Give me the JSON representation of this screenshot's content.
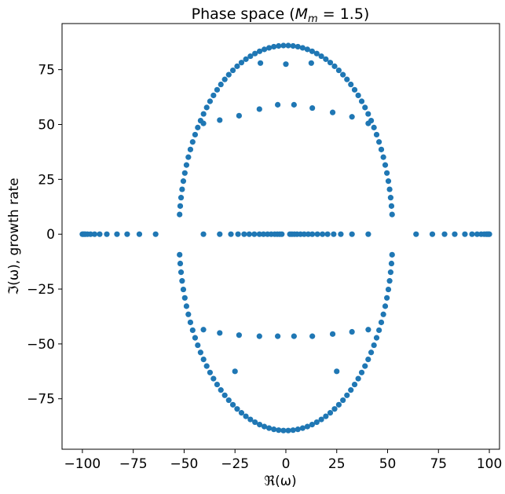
{
  "chart_data": {
    "type": "scatter",
    "title_prefix": "Phase space (",
    "title_math": "M",
    "title_math_sub": "m",
    "title_suffix": " = 1.5)",
    "xlabel": "ℜ(ω)",
    "ylabel": "ℑ(ω), growth rate",
    "xlim": [
      -110,
      105
    ],
    "ylim": [
      -98,
      96
    ],
    "xticks": [
      -100,
      -75,
      -50,
      -25,
      0,
      25,
      50,
      75,
      100
    ],
    "xtick_labels": [
      "−100",
      "−75",
      "−50",
      "−25",
      "0",
      "25",
      "50",
      "75",
      "100"
    ],
    "yticks": [
      -75,
      -50,
      -25,
      0,
      25,
      50,
      75
    ],
    "ytick_labels": [
      "−75",
      "−50",
      "−25",
      "0",
      "25",
      "50",
      "75"
    ],
    "grid": false,
    "marker_color": "#1f77b4",
    "real_axis_points": [
      -100,
      -99.6,
      -99,
      -98.5,
      -97.5,
      -96,
      -94,
      -91.5,
      -88,
      -83,
      -78,
      -72,
      -64,
      -40.5,
      -32.5,
      -27,
      -23.5,
      -20.5,
      -18,
      -15.5,
      -13,
      -11,
      -9,
      -7.2,
      -5.5,
      -4.2,
      -3,
      -2,
      2,
      3,
      4.2,
      5.5,
      7.2,
      9,
      11,
      13,
      15.5,
      18,
      20.5,
      23.5,
      27,
      32.5,
      40.5,
      64,
      72,
      78,
      83,
      88,
      91.5,
      94,
      96,
      97.5,
      98.5,
      99,
      99.6,
      100
    ],
    "upper_arc": {
      "center_x": 0,
      "center_y": 0,
      "radius_x": 52.5,
      "peak_y": 86,
      "count": 66,
      "theta_start_deg": 6,
      "theta_end_deg": 174
    },
    "lower_arc": {
      "center_x": 0,
      "center_y": 0,
      "radius_x": 52.5,
      "peak_y": -89.5,
      "count": 66,
      "theta_start_deg": 6,
      "theta_end_deg": 174
    },
    "inner_points": [
      {
        "x": -12.5,
        "y": 78
      },
      {
        "x": 0,
        "y": 77.5
      },
      {
        "x": 12.5,
        "y": 78
      },
      {
        "x": -40.5,
        "y": 50.5
      },
      {
        "x": -32.5,
        "y": 52
      },
      {
        "x": -23,
        "y": 54
      },
      {
        "x": -13,
        "y": 57
      },
      {
        "x": -4,
        "y": 59
      },
      {
        "x": 4,
        "y": 59
      },
      {
        "x": 13,
        "y": 57.5
      },
      {
        "x": 23,
        "y": 55.5
      },
      {
        "x": 32.5,
        "y": 53.5
      },
      {
        "x": 40.5,
        "y": 50.5
      },
      {
        "x": -40.5,
        "y": -43.5
      },
      {
        "x": -32.5,
        "y": -45
      },
      {
        "x": -23,
        "y": -46
      },
      {
        "x": -13,
        "y": -46.5
      },
      {
        "x": -4,
        "y": -46.5
      },
      {
        "x": 4,
        "y": -46.5
      },
      {
        "x": 13,
        "y": -46.5
      },
      {
        "x": 23,
        "y": -45.5
      },
      {
        "x": 32.5,
        "y": -44.5
      },
      {
        "x": 40.5,
        "y": -43.5
      },
      {
        "x": -25,
        "y": -62.5
      },
      {
        "x": 25,
        "y": -62.5
      }
    ]
  }
}
